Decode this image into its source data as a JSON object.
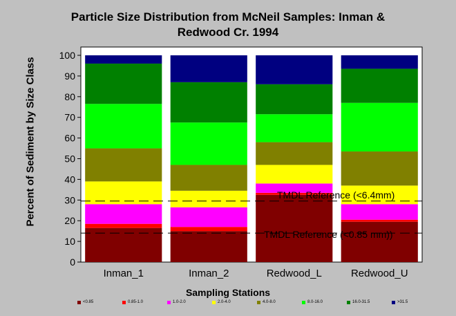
{
  "title": {
    "line1": "Particle Size Distribution from McNeil Samples: Inman &",
    "line2": "Redwood Cr. 1994"
  },
  "chart_data": {
    "type": "bar",
    "stacked": true,
    "xlabel": "Sampling Stations",
    "ylabel": "Percent of Sediment by Size Class",
    "ylim": [
      0,
      100
    ],
    "yticks": [
      0,
      10,
      20,
      30,
      40,
      50,
      60,
      70,
      80,
      90,
      100
    ],
    "grid": false,
    "legend_position": "bottom",
    "categories": [
      "Inman_1",
      "Inman_2",
      "Redwood_L",
      "Redwood_U"
    ],
    "series": [
      {
        "name": "<0.85",
        "color": "#800000",
        "values": [
          16.5,
          15.0,
          32.5,
          19.5
        ]
      },
      {
        "name": "0.85-1.0",
        "color": "#ff0000",
        "values": [
          2.0,
          2.0,
          1.0,
          1.0
        ]
      },
      {
        "name": "1.0-2.0",
        "color": "#ff00ff",
        "values": [
          9.5,
          9.5,
          4.5,
          7.5
        ]
      },
      {
        "name": "2.0-4.0",
        "color": "#ffff00",
        "values": [
          11.0,
          8.0,
          9.0,
          9.0
        ]
      },
      {
        "name": "4.0-8.0",
        "color": "#808000",
        "values": [
          16.0,
          12.5,
          11.0,
          16.5
        ]
      },
      {
        "name": "8.0-16.0",
        "color": "#00ff00",
        "values": [
          21.5,
          20.5,
          13.5,
          23.5
        ]
      },
      {
        "name": "16.0-31.5",
        "color": "#008000",
        "values": [
          19.5,
          19.5,
          14.5,
          16.5
        ]
      },
      {
        "name": ">31.5",
        "color": "#000080",
        "values": [
          4.0,
          13.0,
          14.0,
          6.5
        ]
      }
    ],
    "reference_lines": [
      {
        "label": "TMDL Reference (<6.4mm)",
        "value": 29.5
      },
      {
        "label": "TMDL Reference (<0.85 mm))",
        "value": 14.0
      }
    ]
  }
}
